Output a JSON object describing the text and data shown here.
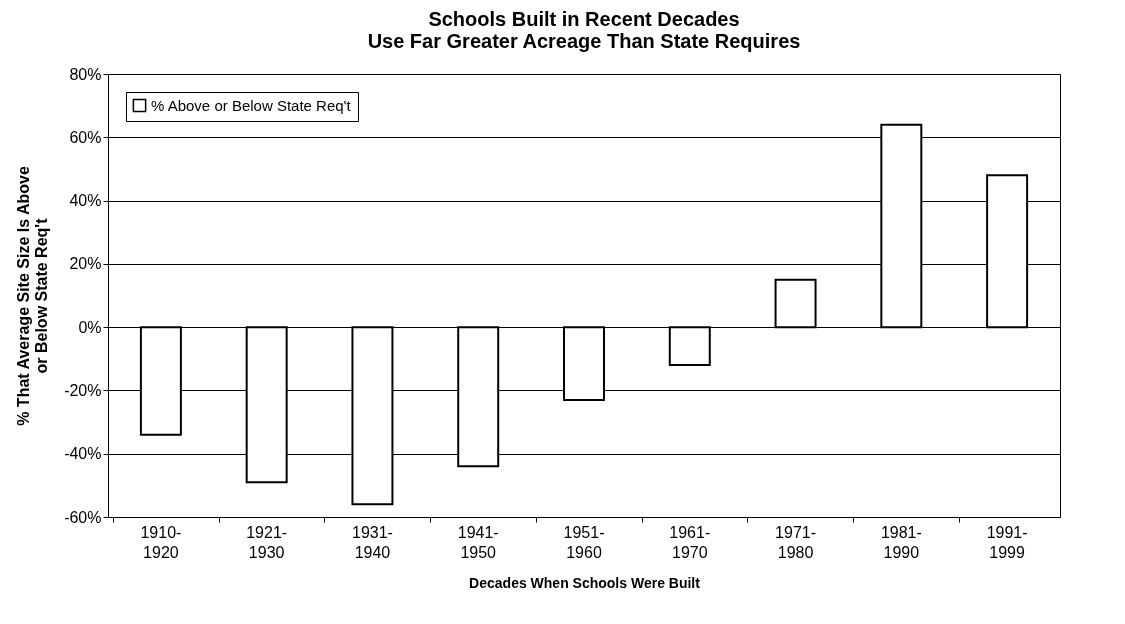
{
  "chart_data": {
    "type": "bar",
    "title": "Schools Built in Recent Decades\nUse Far Greater Acreage Than State Requires",
    "xlabel": "Decades When Schools Were Built",
    "ylabel": "% That Average Site Size Is Above\nor Below State Req't",
    "categories": [
      "1910-1920",
      "1921-1930",
      "1931-1940",
      "1941-1950",
      "1951-1960",
      "1961-1970",
      "1971-1980",
      "1981-1990",
      "1991-1999"
    ],
    "series": [
      {
        "name": "% Above or Below State Req't",
        "color": "#ffffff",
        "values": [
          -34,
          -49,
          -56,
          -44,
          -23,
          -12,
          15,
          64,
          48
        ]
      }
    ],
    "ylim": [
      -60,
      80
    ],
    "yticks": [
      {
        "value": -60,
        "label": "-60%"
      },
      {
        "value": -40,
        "label": "-40%"
      },
      {
        "value": -20,
        "label": "-20%"
      },
      {
        "value": 0,
        "label": "0%"
      },
      {
        "value": 20,
        "label": "20%"
      },
      {
        "value": 40,
        "label": "40%"
      },
      {
        "value": 60,
        "label": "60%"
      },
      {
        "value": 80,
        "label": "80%"
      }
    ],
    "grid": "y",
    "legend": "top left"
  }
}
